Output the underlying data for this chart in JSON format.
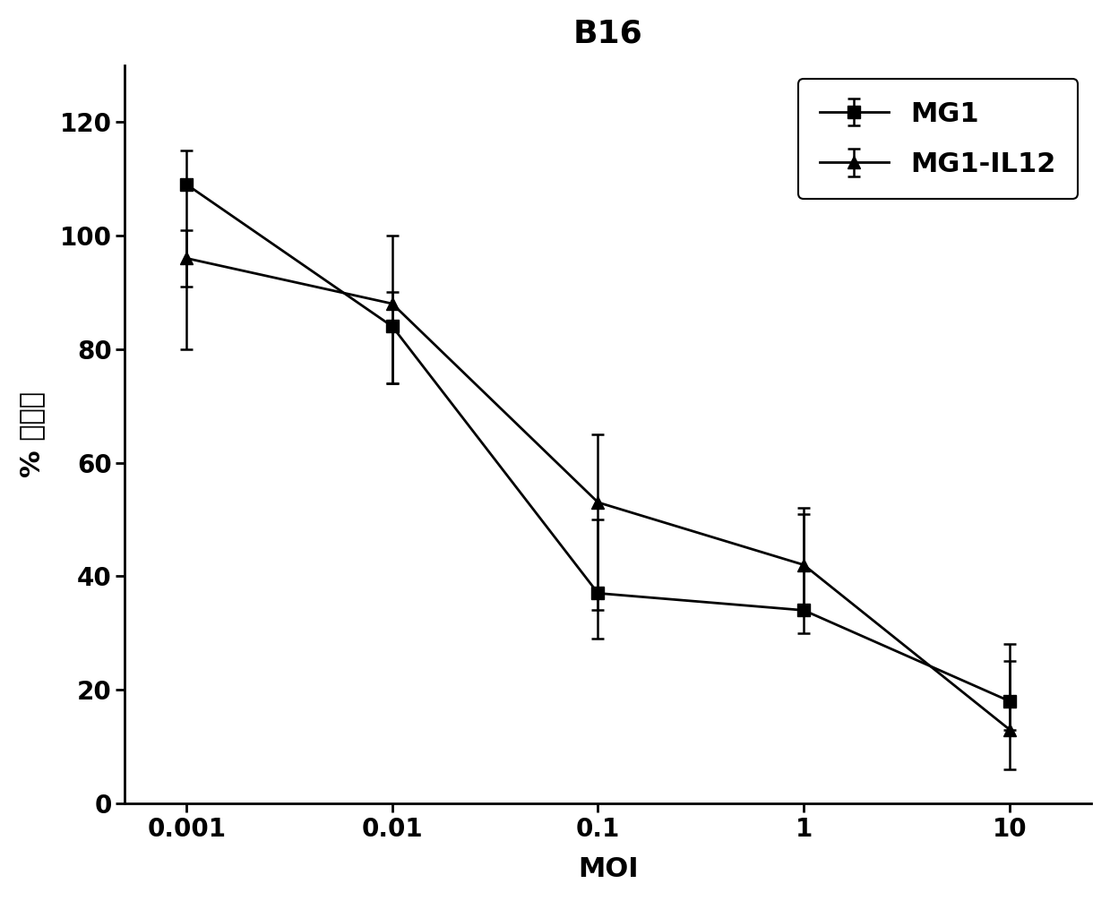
{
  "title": "B16",
  "xlabel": "MOI",
  "ylabel": "% 活细胞",
  "x_values": [
    0.001,
    0.01,
    0.1,
    1,
    10
  ],
  "MG1_y": [
    109,
    84,
    37,
    34,
    18
  ],
  "MG1_yerr_upper": [
    6,
    6,
    13,
    17,
    10
  ],
  "MG1_yerr_lower": [
    18,
    10,
    8,
    4,
    5
  ],
  "IL12_y": [
    96,
    88,
    53,
    42,
    13
  ],
  "IL12_yerr_upper": [
    5,
    12,
    12,
    10,
    12
  ],
  "IL12_yerr_lower": [
    16,
    14,
    19,
    8,
    7
  ],
  "ylim": [
    0,
    130
  ],
  "yticks": [
    0,
    20,
    40,
    60,
    80,
    100,
    120
  ],
  "line_color": "#000000",
  "marker_MG1": "s",
  "marker_IL12": "^",
  "markersize": 10,
  "linewidth": 2.0,
  "legend_MG1": "MG1",
  "legend_IL12": "MG1-IL12",
  "title_fontsize": 26,
  "label_fontsize": 22,
  "tick_fontsize": 20,
  "legend_fontsize": 22,
  "capsize": 5
}
